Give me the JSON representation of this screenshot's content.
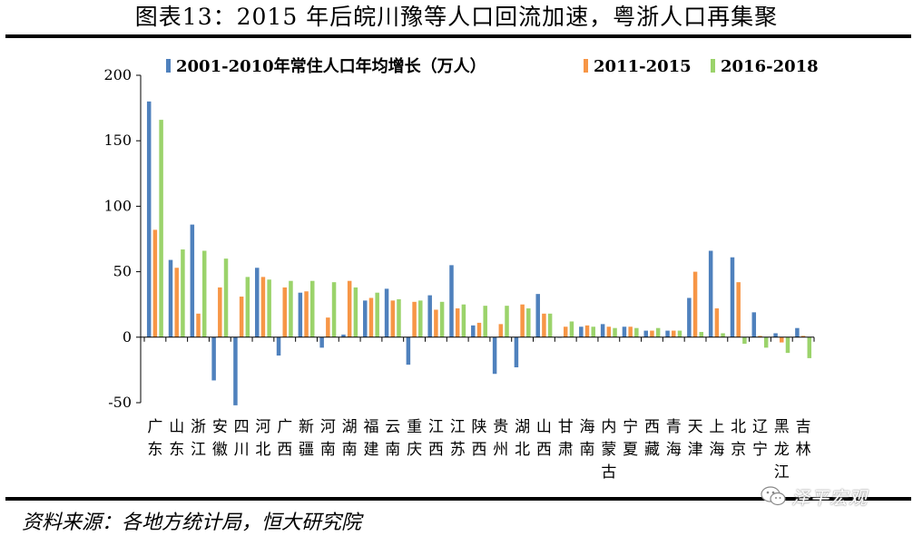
{
  "title": "图表13：2015 年后皖川豫等人口回流加速，粤浙人口再集聚",
  "source": "资料来源：各地方统计局，恒大研究院",
  "watermark": "泽平宏观",
  "colors": {
    "s1": "#4F81BD",
    "s2": "#F79646",
    "s3": "#9BD36B"
  },
  "chart_data": {
    "type": "bar",
    "title": "图表13：2015 年后皖川豫等人口回流加速，粤浙人口再集聚",
    "xlabel": "",
    "ylabel": "",
    "ylim": [
      -50,
      200
    ],
    "yticks": [
      -50,
      0,
      50,
      100,
      150,
      200
    ],
    "grid": false,
    "legend_position": "top",
    "categories": [
      "广东",
      "山东",
      "浙江",
      "安徽",
      "四川",
      "河北",
      "广西",
      "新疆",
      "河南",
      "湖南",
      "福建",
      "云南",
      "重庆",
      "江西",
      "江苏",
      "陕西",
      "贵州",
      "湖北",
      "山西",
      "甘肃",
      "海南",
      "内蒙古",
      "宁夏",
      "西藏",
      "青海",
      "天津",
      "上海",
      "北京",
      "辽宁",
      "黑龙江",
      "吉林"
    ],
    "series": [
      {
        "name": "2001-2010年常住人口年均增长（万人）",
        "values": [
          180,
          59,
          86,
          -33,
          -52,
          53,
          -14,
          34,
          -8,
          2,
          28,
          37,
          -21,
          32,
          55,
          9,
          -28,
          -23,
          33,
          0,
          8,
          10,
          8,
          5,
          5,
          30,
          66,
          61,
          19,
          3,
          7
        ]
      },
      {
        "name": "2011-2015",
        "values": [
          82,
          53,
          18,
          38,
          31,
          46,
          38,
          35,
          15,
          43,
          30,
          28,
          27,
          21,
          22,
          11,
          10,
          25,
          18,
          8,
          9,
          8,
          8,
          5,
          5,
          50,
          22,
          42,
          1,
          -4,
          1
        ]
      },
      {
        "name": "2016-2018",
        "values": [
          166,
          67,
          66,
          60,
          46,
          44,
          43,
          43,
          42,
          38,
          34,
          29,
          28,
          27,
          25,
          24,
          24,
          22,
          18,
          12,
          8,
          7,
          7,
          7,
          5,
          4,
          3,
          -5,
          -8,
          -12,
          -16
        ]
      }
    ]
  }
}
